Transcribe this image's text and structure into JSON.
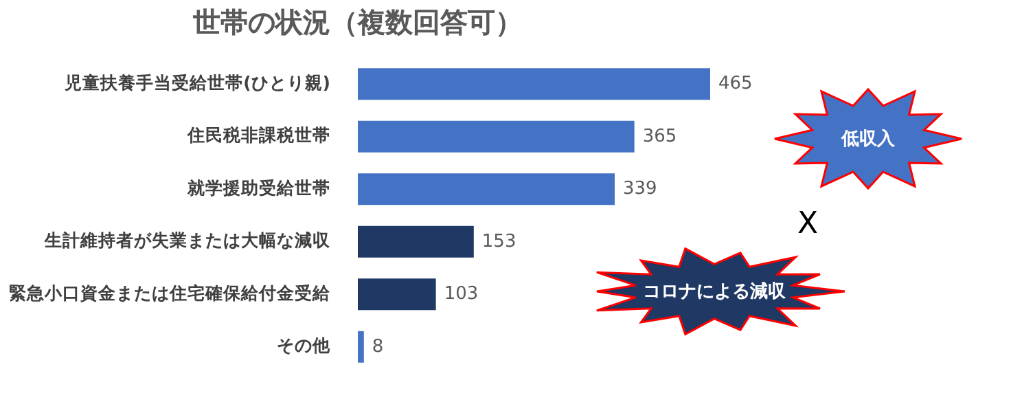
{
  "chart_data": {
    "type": "bar",
    "orientation": "horizontal",
    "title": "世帯の状況（複数回答可）",
    "categories": [
      "児童扶養手当受給世帯(ひとり親)",
      "住民税非課税世帯",
      "就学援助受給世帯",
      "生計維持者が失業または大幅な減収",
      "緊急小口資金または住宅確保給付金受給",
      "その他"
    ],
    "values": [
      465,
      365,
      339,
      153,
      103,
      8
    ],
    "colors": [
      "#4472c4",
      "#4472c4",
      "#4472c4",
      "#1f3864",
      "#1f3864",
      "#4472c4"
    ],
    "data_labels": true,
    "grid": false,
    "legend": false,
    "tick_labels": "y",
    "annotations": [
      "低収入",
      "X",
      "コロナによる減収"
    ]
  }
}
